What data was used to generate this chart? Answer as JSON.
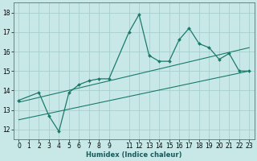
{
  "title": "",
  "xlabel": "Humidex (Indice chaleur)",
  "bg_color": "#c8e8e8",
  "line_color": "#1a7a6a",
  "grid_color": "#a8cece",
  "ylim": [
    11.5,
    18.5
  ],
  "xlim": [
    -0.5,
    23.5
  ],
  "yticks": [
    12,
    13,
    14,
    15,
    16,
    17,
    18
  ],
  "xticks": [
    0,
    1,
    2,
    3,
    4,
    5,
    6,
    7,
    8,
    9,
    11,
    12,
    13,
    14,
    15,
    16,
    17,
    18,
    19,
    20,
    21,
    22,
    23
  ],
  "xtick_labels": [
    "0",
    "1",
    "2",
    "3",
    "4",
    "5",
    "6",
    "7",
    "8",
    "9",
    "11",
    "12",
    "13",
    "14",
    "15",
    "16",
    "17",
    "18",
    "19",
    "20",
    "21",
    "22",
    "23"
  ],
  "main_line_x": [
    0,
    2,
    3,
    4,
    5,
    6,
    7,
    8,
    9,
    11,
    12,
    13,
    14,
    15,
    16,
    17,
    18,
    19,
    20,
    21,
    22,
    23
  ],
  "main_line_y": [
    13.5,
    13.9,
    12.7,
    11.9,
    13.9,
    14.3,
    14.5,
    14.6,
    14.6,
    17.0,
    17.9,
    15.8,
    15.5,
    15.5,
    16.6,
    17.2,
    16.4,
    16.2,
    15.6,
    15.9,
    15.0,
    15.0
  ],
  "line2_x": [
    0,
    23
  ],
  "line2_y": [
    13.4,
    16.2
  ],
  "line3_x": [
    0,
    23
  ],
  "line3_y": [
    12.5,
    15.0
  ],
  "axis_fontsize": 6,
  "tick_fontsize": 5.5
}
